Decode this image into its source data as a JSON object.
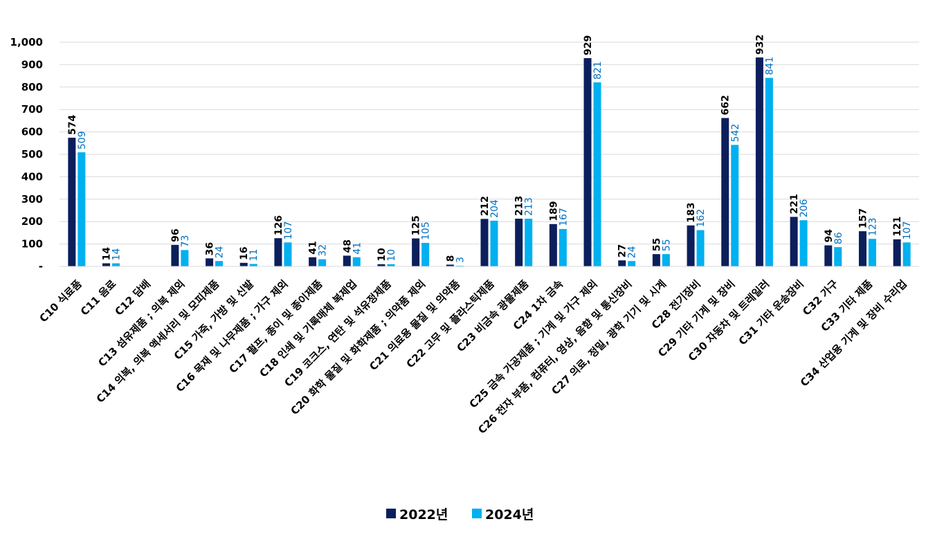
{
  "chart_data": {
    "type": "bar",
    "title": "",
    "xlabel": "",
    "ylabel": "",
    "ylim": [
      0,
      1000
    ],
    "yticks": [
      0,
      100,
      200,
      300,
      400,
      500,
      600,
      700,
      800,
      900,
      1000
    ],
    "ytick_labels": [
      "-",
      "100",
      "200",
      "300",
      "400",
      "500",
      "600",
      "700",
      "800",
      "900",
      "1,000"
    ],
    "grid": true,
    "legend_position": "bottom",
    "categories": [
      "C10 식료품",
      "C11 음료",
      "C12 담배",
      "C13 섬유제품 ; 의복 제외",
      "C14 의복, 의복 액세서리 및 모피제품",
      "C15 가죽, 가방 및 신발",
      "C16 목재 및 나무제품 ; 가구 제외",
      "C17 펄프, 종이 및 종이제품",
      "C18 인쇄 및 기록매체 복제업",
      "C19 코크스, 연탄 및 석유정제품",
      "C20 화학 물질 및 화학제품 ; 의약품 제외",
      "C21 의료용 물질 및 의약품",
      "C22 고무 및 플라스틱제품",
      "C23 비금속 광물제품",
      "C24 1차 금속",
      "C25 금속 가공제품 ; 기계 및 가구 제외",
      "C26 전자 부품, 컴퓨터, 영상, 음향 및 통신장비",
      "C27 의료, 정밀, 광학 기기 및 시계",
      "C28 전기장비",
      "C29 기타 기계 및 장비",
      "C30 자동차 및 트레일러",
      "C31 기타 운송장비",
      "C32 가구",
      "C33 기타 제품",
      "C34 산업용 기계 및 장비 수리업"
    ],
    "series": [
      {
        "name": "2022년",
        "color": "#0B1F5C",
        "label_color": "#000000",
        "values": [
          574,
          14,
          null,
          96,
          36,
          16,
          126,
          41,
          48,
          10,
          125,
          8,
          212,
          213,
          189,
          929,
          27,
          55,
          183,
          662,
          932,
          221,
          94,
          157,
          121
        ]
      },
      {
        "name": "2024년",
        "color": "#00B0F0",
        "label_color": "#0070C0",
        "values": [
          509,
          14,
          null,
          73,
          24,
          11,
          107,
          32,
          41,
          10,
          105,
          3,
          204,
          213,
          167,
          821,
          24,
          55,
          162,
          542,
          841,
          206,
          86,
          123,
          107
        ]
      }
    ]
  }
}
